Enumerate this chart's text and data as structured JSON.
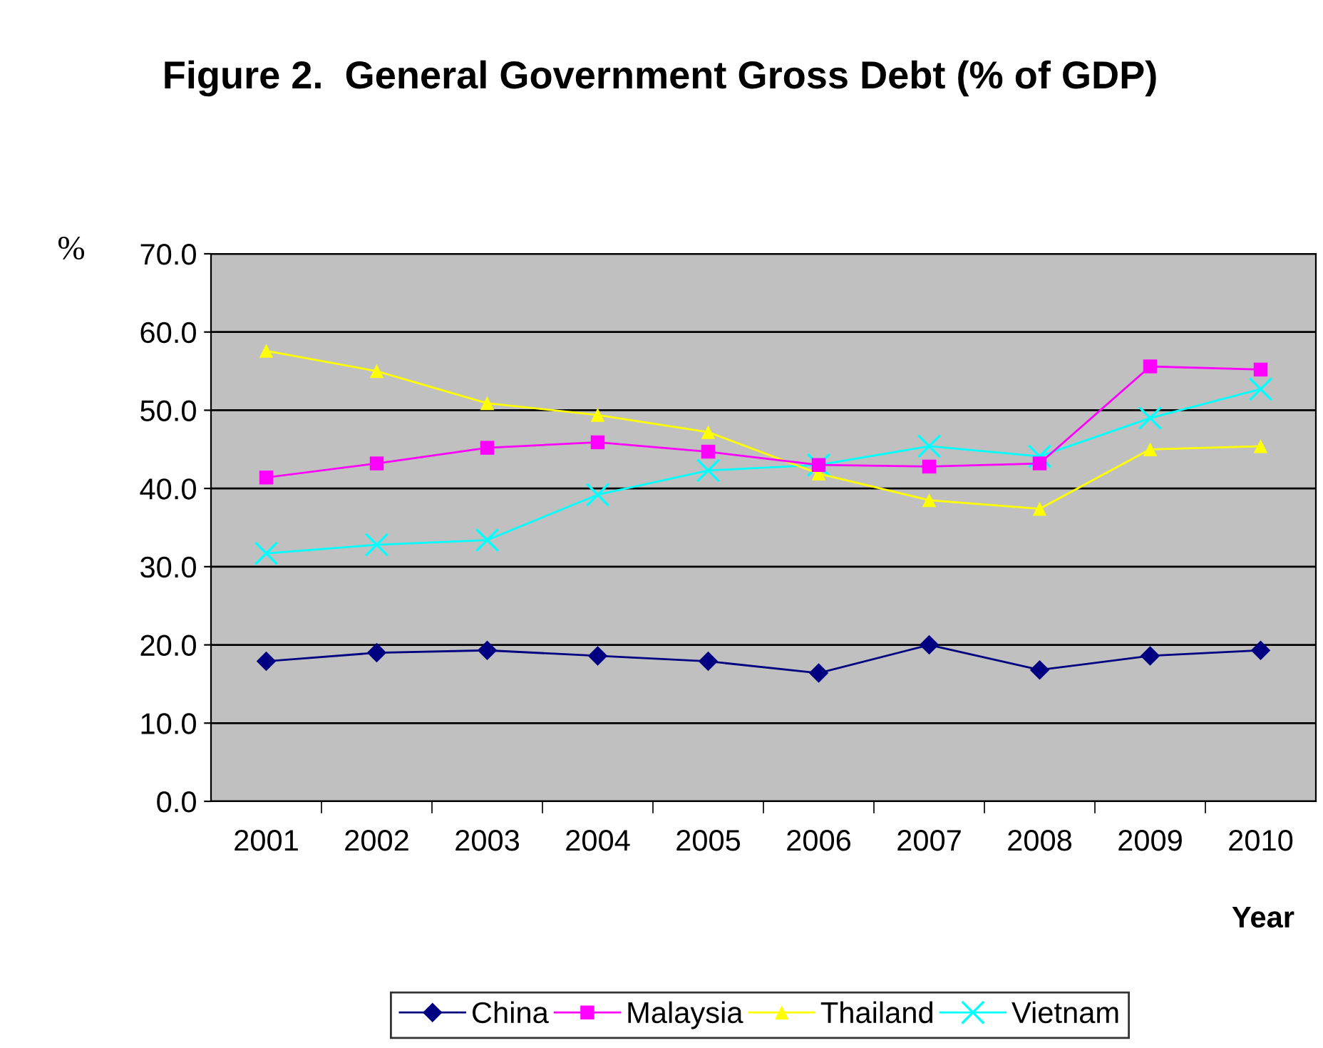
{
  "chart_data": {
    "type": "line",
    "title": "Figure 2.  General Government Gross Debt (% of GDP)",
    "xlabel": "Year",
    "ylabel": "%",
    "categories": [
      "2001",
      "2002",
      "2003",
      "2004",
      "2005",
      "2006",
      "2007",
      "2008",
      "2009",
      "2010"
    ],
    "series": [
      {
        "name": "China",
        "color": "#000080",
        "marker": "diamond",
        "values": [
          17.9,
          19.0,
          19.3,
          18.6,
          17.9,
          16.4,
          20.0,
          16.8,
          18.6,
          19.3
        ]
      },
      {
        "name": "Malaysia",
        "color": "#ff00ff",
        "marker": "square",
        "values": [
          41.4,
          43.2,
          45.2,
          45.9,
          44.7,
          43.0,
          42.8,
          43.2,
          55.6,
          55.2
        ]
      },
      {
        "name": "Thailand",
        "color": "#ffff00",
        "marker": "triangle",
        "values": [
          57.6,
          55.0,
          50.9,
          49.4,
          47.2,
          41.9,
          38.5,
          37.4,
          45.0,
          45.4
        ]
      },
      {
        "name": "Vietnam",
        "color": "#00ffff",
        "marker": "cross",
        "values": [
          31.7,
          32.8,
          33.4,
          39.2,
          42.3,
          43.0,
          45.4,
          44.1,
          49.0,
          52.7
        ]
      }
    ],
    "ylim": [
      0,
      70
    ],
    "yticks": [
      {
        "value": 0,
        "label": "0.0"
      },
      {
        "value": 10,
        "label": "10.0"
      },
      {
        "value": 20,
        "label": "20.0"
      },
      {
        "value": 30,
        "label": "30.0"
      },
      {
        "value": 40,
        "label": "40.0"
      },
      {
        "value": 50,
        "label": "50.0"
      },
      {
        "value": 60,
        "label": "60.0"
      },
      {
        "value": 70,
        "label": "70.0"
      }
    ],
    "grid": "y",
    "legend": "bottom"
  }
}
